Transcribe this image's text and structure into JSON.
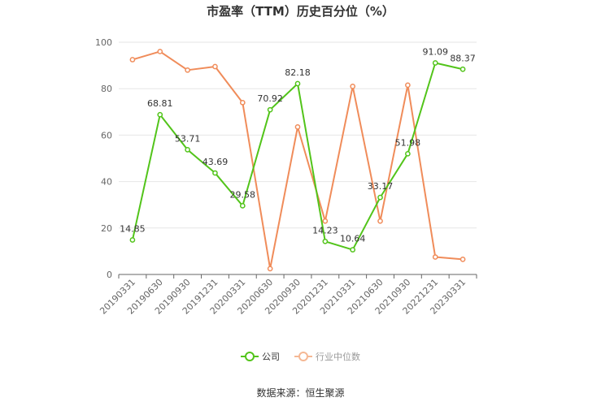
{
  "chart_data": {
    "type": "line",
    "title": "市盈率（TTM）历史百分位（%）",
    "categories": [
      "20190331",
      "20190630",
      "20190930",
      "20191231",
      "20200331",
      "20200630",
      "20200930",
      "20201231",
      "20210331",
      "20210630",
      "20210930",
      "20221231",
      "20230331"
    ],
    "ylim": [
      0,
      100
    ],
    "yticks": [
      0,
      20,
      40,
      60,
      80,
      100
    ],
    "grid": true,
    "legend_position": "bottom",
    "series": [
      {
        "name": "公司",
        "color": "#52c41a",
        "values": [
          14.85,
          68.81,
          53.71,
          43.69,
          29.58,
          70.92,
          82.18,
          14.23,
          10.64,
          33.17,
          51.98,
          91.09,
          88.37
        ],
        "labels": [
          "14.85",
          "68.81",
          "53.71",
          "43.69",
          "29.58",
          "70.92",
          "82.18",
          "14.23",
          "10.64",
          "33.17",
          "51.98",
          "91.09",
          "88.37"
        ]
      },
      {
        "name": "行业中位数",
        "color": "#f08c5a",
        "values": [
          92.5,
          96,
          88,
          89.5,
          74,
          2.5,
          63.5,
          23,
          81,
          23,
          81.5,
          7.5,
          6.5
        ]
      }
    ],
    "source": "数据来源：恒生聚源"
  }
}
